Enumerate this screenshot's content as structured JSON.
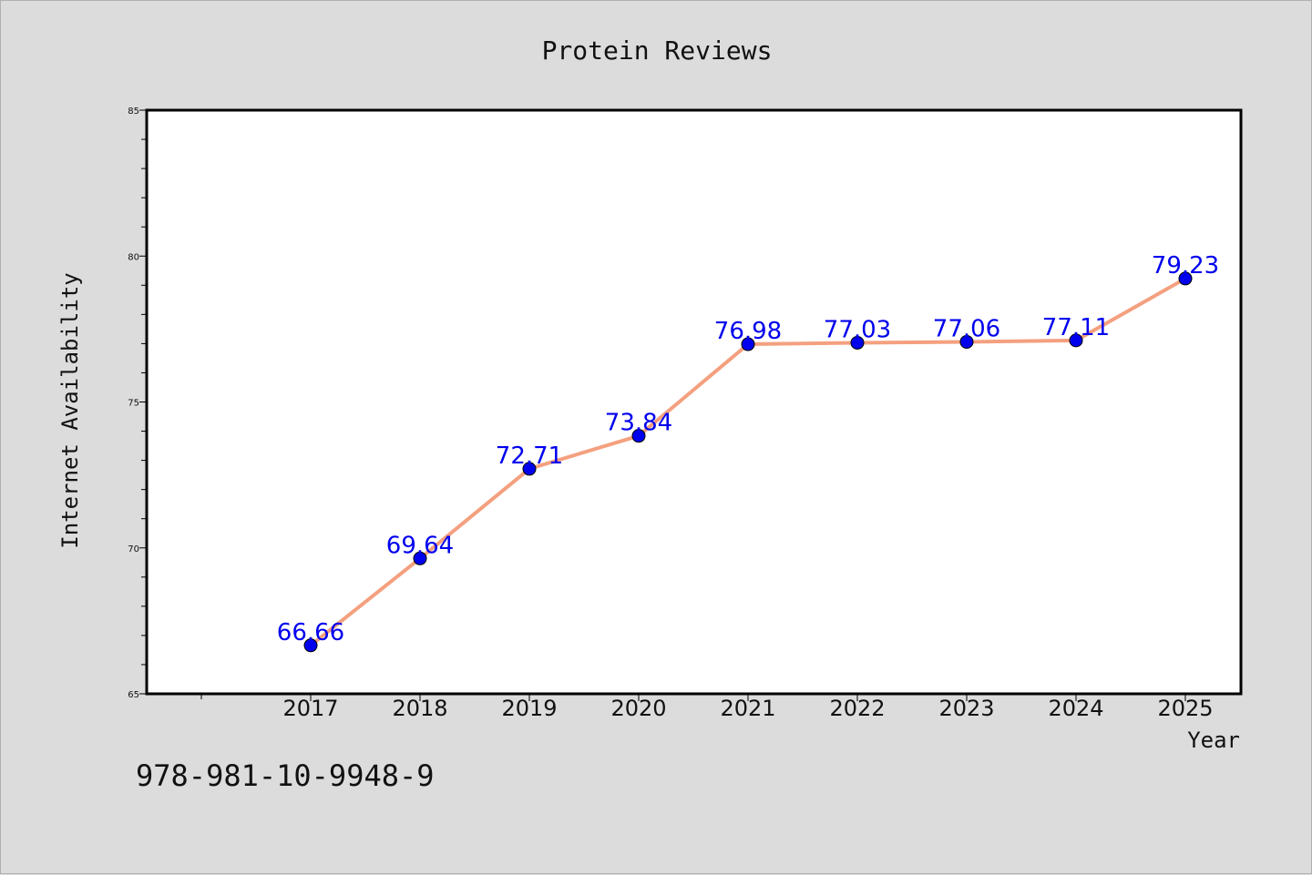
{
  "chart_data": {
    "type": "line",
    "title": "Protein Reviews",
    "xlabel": "Year",
    "ylabel": "Internet Availability",
    "categories": [
      "2017",
      "2018",
      "2019",
      "2020",
      "2021",
      "2022",
      "2023",
      "2024",
      "2025"
    ],
    "series": [
      {
        "values": [
          66.66,
          69.64,
          72.71,
          73.84,
          76.98,
          77.03,
          77.06,
          77.11,
          79.23
        ],
        "data_labels": [
          "66.66",
          "69.64",
          "72.71",
          "73.84",
          "76.98",
          "77.03",
          "77.06",
          "77.11",
          "79.23"
        ]
      }
    ],
    "ylim": [
      65,
      85
    ],
    "yticks": [
      "65",
      "70",
      "75",
      "80",
      "85"
    ],
    "grid": false,
    "legend": "none",
    "colors": {
      "line": "#f4a07f",
      "marker": "#0000ee",
      "label": "#0000ee",
      "background": "#dcdcdc",
      "plot_bg": "#ffffff"
    }
  },
  "footer": {
    "isbn": "978-981-10-9948-9"
  }
}
